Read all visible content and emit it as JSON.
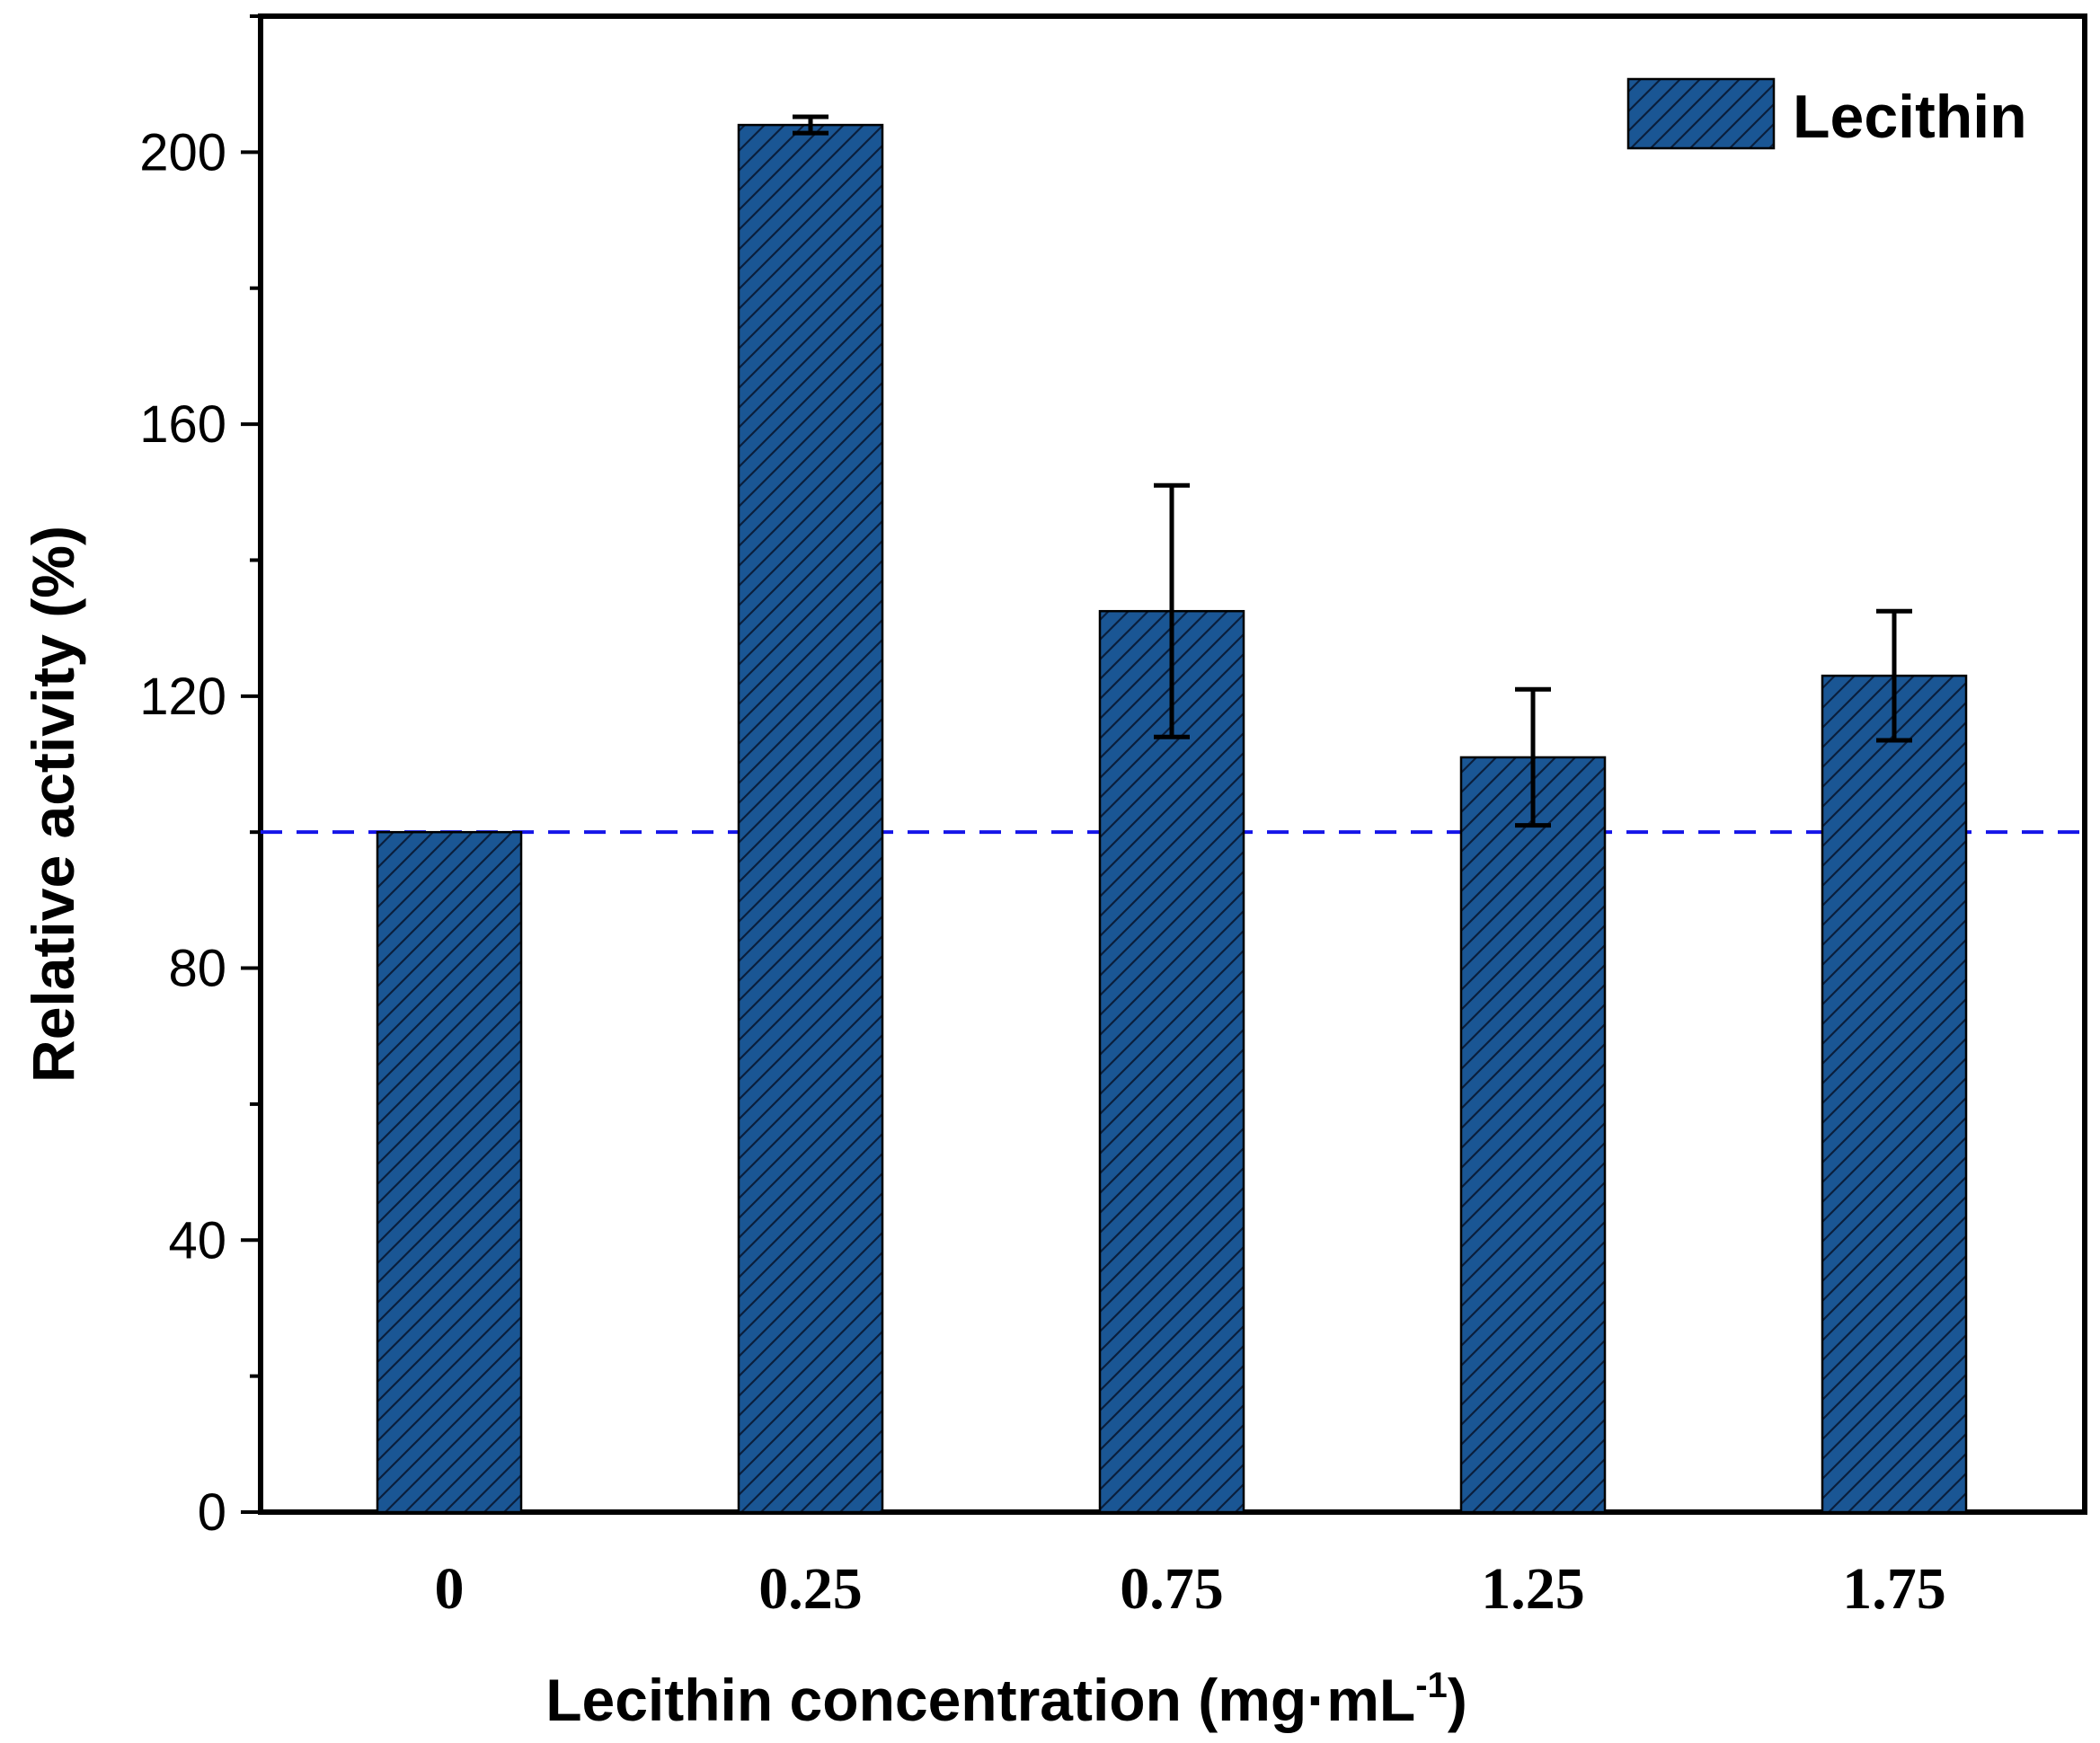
{
  "chart_data": {
    "type": "bar",
    "categories": [
      "0",
      "0.25",
      "0.75",
      "1.25",
      "1.75"
    ],
    "series": [
      {
        "name": "Lecithin",
        "values": [
          100,
          204,
          132.5,
          111,
          123
        ],
        "errors": [
          0,
          1.2,
          18.5,
          10,
          9.5
        ],
        "color": "#1a5694"
      }
    ],
    "reference_line": {
      "y": 100,
      "style": "dashed",
      "color": "#1515e8"
    },
    "ylim": [
      0,
      220
    ],
    "yticks": [
      0,
      40,
      80,
      120,
      160,
      200
    ],
    "y_minor_step": 20,
    "xlabel": "Lecithin concentration (mg·mL",
    "xlabel_sup": "-1",
    "xlabel_close": ")",
    "ylabel": "Relative activity (%)",
    "legend": {
      "position": "top-right",
      "label": "Lecithin"
    }
  }
}
